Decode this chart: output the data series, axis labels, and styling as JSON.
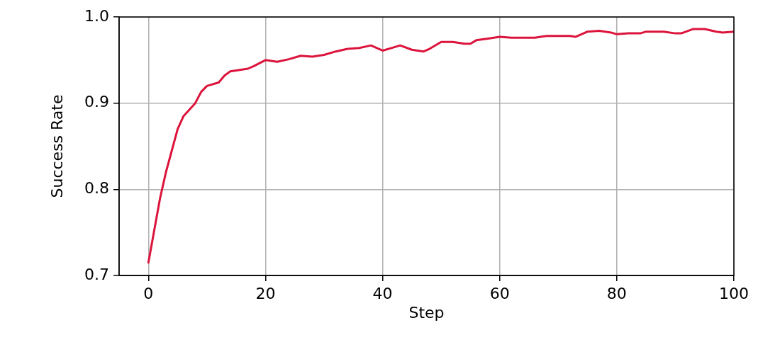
{
  "chart_data": {
    "type": "line",
    "xlabel": "Step",
    "ylabel": "Success Rate",
    "xlim": [
      -5,
      100
    ],
    "xticks": [
      0,
      20,
      40,
      60,
      80,
      100
    ],
    "ylim": [
      0.7,
      1.0
    ],
    "yticks": [
      {
        "value": 0.7,
        "label": "0.7"
      },
      {
        "value": 0.8,
        "label": "0.8"
      },
      {
        "value": 0.9,
        "label": "0.9"
      },
      {
        "value": 1.0,
        "label": "1.0"
      }
    ],
    "grid": true,
    "marker": "none",
    "line_style": "solid",
    "series": [
      {
        "color": "#dc143c",
        "x": [
          0,
          2,
          3,
          5,
          6,
          8,
          9,
          10,
          12,
          13,
          14,
          16,
          17,
          18,
          20,
          22,
          24,
          26,
          28,
          30,
          32,
          34,
          36,
          38,
          40,
          42,
          43,
          45,
          47,
          48,
          50,
          52,
          54,
          55,
          56,
          58,
          60,
          62,
          64,
          66,
          68,
          70,
          72,
          73,
          75,
          77,
          79,
          80,
          82,
          84,
          85,
          88,
          90,
          91,
          93,
          95,
          97,
          98,
          100
        ],
        "values": [
          0.715,
          0.79,
          0.82,
          0.87,
          0.885,
          0.9,
          0.913,
          0.92,
          0.924,
          0.932,
          0.937,
          0.939,
          0.94,
          0.943,
          0.95,
          0.948,
          0.951,
          0.955,
          0.954,
          0.956,
          0.96,
          0.963,
          0.964,
          0.967,
          0.961,
          0.965,
          0.967,
          0.962,
          0.96,
          0.963,
          0.971,
          0.971,
          0.969,
          0.969,
          0.973,
          0.975,
          0.977,
          0.976,
          0.976,
          0.976,
          0.978,
          0.978,
          0.978,
          0.977,
          0.983,
          0.984,
          0.982,
          0.98,
          0.981,
          0.981,
          0.983,
          0.983,
          0.981,
          0.981,
          0.986,
          0.986,
          0.983,
          0.982,
          0.983
        ]
      }
    ]
  }
}
